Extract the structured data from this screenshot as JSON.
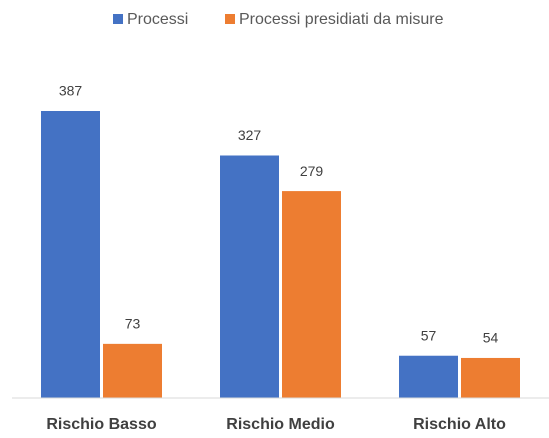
{
  "chart_data": {
    "type": "bar",
    "categories": [
      "Rischio Basso",
      "Rischio Medio",
      "Rischio Alto"
    ],
    "series": [
      {
        "name": "Processi",
        "color": "#4472c4",
        "values": [
          387,
          327,
          57
        ]
      },
      {
        "name": "Processi presidiati da misure",
        "color": "#ed7d31",
        "values": [
          73,
          279,
          54
        ]
      }
    ],
    "legend": "top"
  }
}
